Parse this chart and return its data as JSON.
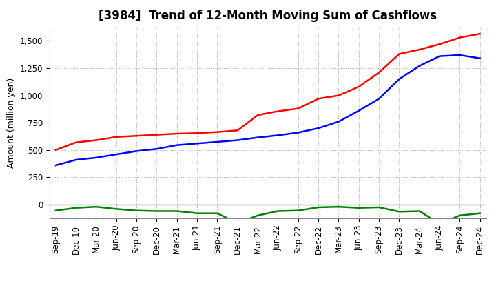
{
  "title": "[3984]  Trend of 12-Month Moving Sum of Cashflows",
  "ylabel": "Amount (million yen)",
  "ylim": [
    -125,
    1625
  ],
  "yticks": [
    0,
    250,
    500,
    750,
    1000,
    1250,
    1500
  ],
  "ytick_labels": [
    "0",
    "250",
    "500",
    "750",
    "1,000",
    "1,250",
    "1,500"
  ],
  "x_labels": [
    "Sep-19",
    "Dec-19",
    "Mar-20",
    "Jun-20",
    "Sep-20",
    "Dec-20",
    "Mar-21",
    "Jun-21",
    "Sep-21",
    "Dec-21",
    "Mar-22",
    "Jun-22",
    "Sep-22",
    "Dec-22",
    "Mar-23",
    "Jun-23",
    "Sep-23",
    "Dec-23",
    "Mar-24",
    "Jun-24",
    "Sep-24",
    "Dec-24"
  ],
  "operating": [
    500,
    570,
    590,
    620,
    630,
    640,
    650,
    655,
    665,
    680,
    820,
    855,
    880,
    970,
    1000,
    1080,
    1210,
    1380,
    1420,
    1470,
    1530,
    1565
  ],
  "investing": [
    -55,
    -30,
    -20,
    -40,
    -55,
    -60,
    -60,
    -80,
    -80,
    -170,
    -100,
    -60,
    -55,
    -25,
    -20,
    -30,
    -25,
    -65,
    -60,
    -175,
    -100,
    -80
  ],
  "free": [
    360,
    410,
    430,
    460,
    490,
    510,
    545,
    560,
    575,
    590,
    615,
    635,
    660,
    700,
    760,
    860,
    970,
    1150,
    1270,
    1360,
    1370,
    1340
  ],
  "operating_color": "#ff0000",
  "investing_color": "#008000",
  "free_color": "#0000ff",
  "background_color": "#ffffff",
  "grid_color": "#aaaaaa",
  "title_fontsize": 12,
  "axis_fontsize": 9,
  "tick_fontsize": 8.5,
  "legend_fontsize": 9.5
}
